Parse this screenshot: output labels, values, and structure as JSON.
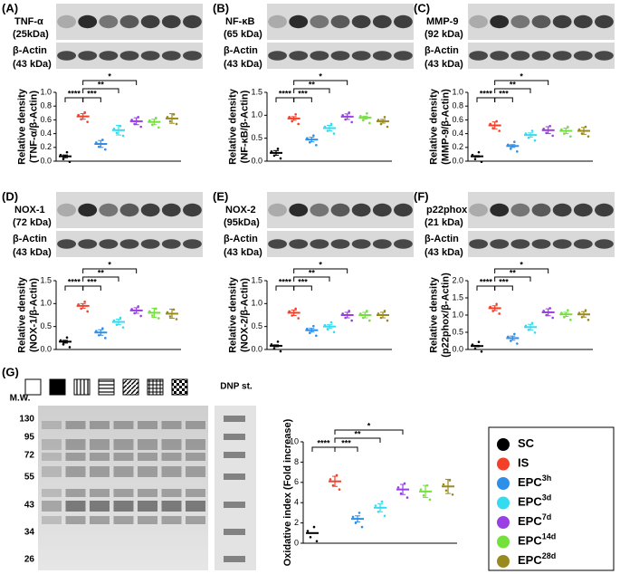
{
  "legend": [
    {
      "name": "SC",
      "color": "#000000"
    },
    {
      "name": "IS",
      "color": "#f2402a"
    },
    {
      "name": "EPC",
      "sup": "3h",
      "color": "#2e8fe8"
    },
    {
      "name": "EPC",
      "sup": "3d",
      "color": "#35dcef"
    },
    {
      "name": "EPC",
      "sup": "7d",
      "color": "#9a3fe4"
    },
    {
      "name": "EPC",
      "sup": "14d",
      "color": "#74e03c"
    },
    {
      "name": "EPC",
      "sup": "28d",
      "color": "#998a1f"
    }
  ],
  "significance": [
    "****",
    "***",
    "**",
    "*"
  ],
  "panels": [
    {
      "label": "(A)",
      "protein": "TNF-α",
      "kda": "(25kDa)",
      "actin": "β-Actin",
      "actin_kda": "(43 kDa)"
    },
    {
      "label": "(B)",
      "protein": "NF-κB",
      "kda": "(65 kDa)",
      "actin": "β-Actin",
      "actin_kda": "(43 kDa)"
    },
    {
      "label": "(C)",
      "protein": "MMP-9",
      "kda": "(92 kDa)",
      "actin": "β-Actin",
      "actin_kda": "(43 kDa)"
    },
    {
      "label": "(D)",
      "protein": "NOX-1",
      "kda": "(72 kDa)",
      "actin": "β-Actin",
      "actin_kda": "(43 kDa)"
    },
    {
      "label": "(E)",
      "protein": "NOX-2",
      "kda": "(95kDa)",
      "actin": "β-Actin",
      "actin_kda": "(43 kDa)"
    },
    {
      "label": "(F)",
      "protein": "p22phox",
      "kda": "(21 kDa)",
      "actin": "β-Actin",
      "actin_kda": "(43 kDa)"
    }
  ],
  "gel": {
    "label": "(G)",
    "mw_title": "M.W.",
    "markers": [
      130,
      95,
      72,
      55,
      43,
      34,
      26
    ],
    "standard": "DNP st."
  },
  "chart_data": [
    {
      "type": "dot",
      "ylabel": [
        "Relative density",
        "(TNF-α/β-Actin)"
      ],
      "values": [
        0.07,
        0.65,
        0.25,
        0.45,
        0.58,
        0.57,
        0.62
      ],
      "errors": [
        0.02,
        0.04,
        0.05,
        0.07,
        0.05,
        0.04,
        0.07
      ],
      "ylim": [
        0,
        1
      ],
      "yticks": [
        {
          "value": 0,
          "label": "0.0"
        },
        {
          "value": 0.2,
          "label": "0.2"
        },
        {
          "value": 0.4,
          "label": "0.4"
        },
        {
          "value": 0.6,
          "label": "0.6"
        },
        {
          "value": 0.8,
          "label": "0.8"
        },
        {
          "value": 1,
          "label": "1.0"
        }
      ]
    },
    {
      "type": "dot",
      "ylabel": [
        "Relative density",
        "(NF-κB/β-Actin)"
      ],
      "values": [
        0.18,
        0.93,
        0.47,
        0.72,
        0.97,
        0.95,
        0.87
      ],
      "errors": [
        0.05,
        0.04,
        0.05,
        0.06,
        0.06,
        0.03,
        0.04
      ],
      "ylim": [
        0,
        1.5
      ],
      "yticks": [
        {
          "value": 0,
          "label": "0.0"
        },
        {
          "value": 0.5,
          "label": "0.5"
        },
        {
          "value": 1,
          "label": "1.0"
        },
        {
          "value": 1.5,
          "label": "1.5"
        }
      ]
    },
    {
      "type": "dot",
      "ylabel": [
        "Relative density",
        "(MMP-9/β-Actin)"
      ],
      "values": [
        0.07,
        0.52,
        0.22,
        0.38,
        0.45,
        0.44,
        0.44
      ],
      "errors": [
        0.01,
        0.05,
        0.02,
        0.03,
        0.05,
        0.04,
        0.05
      ],
      "ylim": [
        0,
        1
      ],
      "yticks": [
        {
          "value": 0,
          "label": "0.0"
        },
        {
          "value": 0.2,
          "label": "0.2"
        },
        {
          "value": 0.4,
          "label": "0.4"
        },
        {
          "value": 0.6,
          "label": "0.6"
        },
        {
          "value": 0.8,
          "label": "0.8"
        },
        {
          "value": 1,
          "label": "1.0"
        }
      ]
    },
    {
      "type": "dot",
      "ylabel": [
        "Relative density",
        "(NOX-1/β-Actin)"
      ],
      "values": [
        0.17,
        0.95,
        0.37,
        0.6,
        0.85,
        0.8,
        0.78
      ],
      "errors": [
        0.03,
        0.05,
        0.06,
        0.06,
        0.06,
        0.1,
        0.1
      ],
      "ylim": [
        0,
        1.5
      ],
      "yticks": [
        {
          "value": 0,
          "label": "0.0"
        },
        {
          "value": 0.5,
          "label": "0.5"
        },
        {
          "value": 1,
          "label": "1.0"
        },
        {
          "value": 1.5,
          "label": "1.5"
        }
      ]
    },
    {
      "type": "dot",
      "ylabel": [
        "Relative density",
        "(NOX-2/β-Actin)"
      ],
      "values": [
        0.08,
        0.8,
        0.42,
        0.5,
        0.75,
        0.75,
        0.75
      ],
      "errors": [
        0.02,
        0.06,
        0.04,
        0.04,
        0.06,
        0.06,
        0.06
      ],
      "ylim": [
        0,
        1.5
      ],
      "yticks": [
        {
          "value": 0,
          "label": "0.0"
        },
        {
          "value": 0.5,
          "label": "0.5"
        },
        {
          "value": 1,
          "label": "1.0"
        },
        {
          "value": 1.5,
          "label": "1.5"
        }
      ]
    },
    {
      "type": "dot",
      "ylabel": [
        "Relative density",
        "(p22phox/β-Actin)"
      ],
      "values": [
        0.1,
        1.2,
        0.33,
        0.65,
        1.08,
        1.02,
        1.02
      ],
      "errors": [
        0.02,
        0.07,
        0.06,
        0.08,
        0.1,
        0.06,
        0.08
      ],
      "ylim": [
        0,
        2
      ],
      "yticks": [
        {
          "value": 0,
          "label": "0.0"
        },
        {
          "value": 0.5,
          "label": "0.5"
        },
        {
          "value": 1,
          "label": "1.0"
        },
        {
          "value": 1.5,
          "label": "1.5"
        },
        {
          "value": 2,
          "label": "2.0"
        }
      ]
    },
    {
      "type": "dot",
      "ylabel": [
        "Oxidative index (Fold increase)"
      ],
      "values": [
        1,
        6.1,
        2.4,
        3.5,
        5.3,
        5.1,
        5.6
      ],
      "errors": [
        0.02,
        0.5,
        0.3,
        0.4,
        0.5,
        0.6,
        0.7
      ],
      "ylim": [
        0,
        10
      ],
      "yticks": [
        0,
        2,
        4,
        6,
        8,
        10
      ]
    }
  ]
}
